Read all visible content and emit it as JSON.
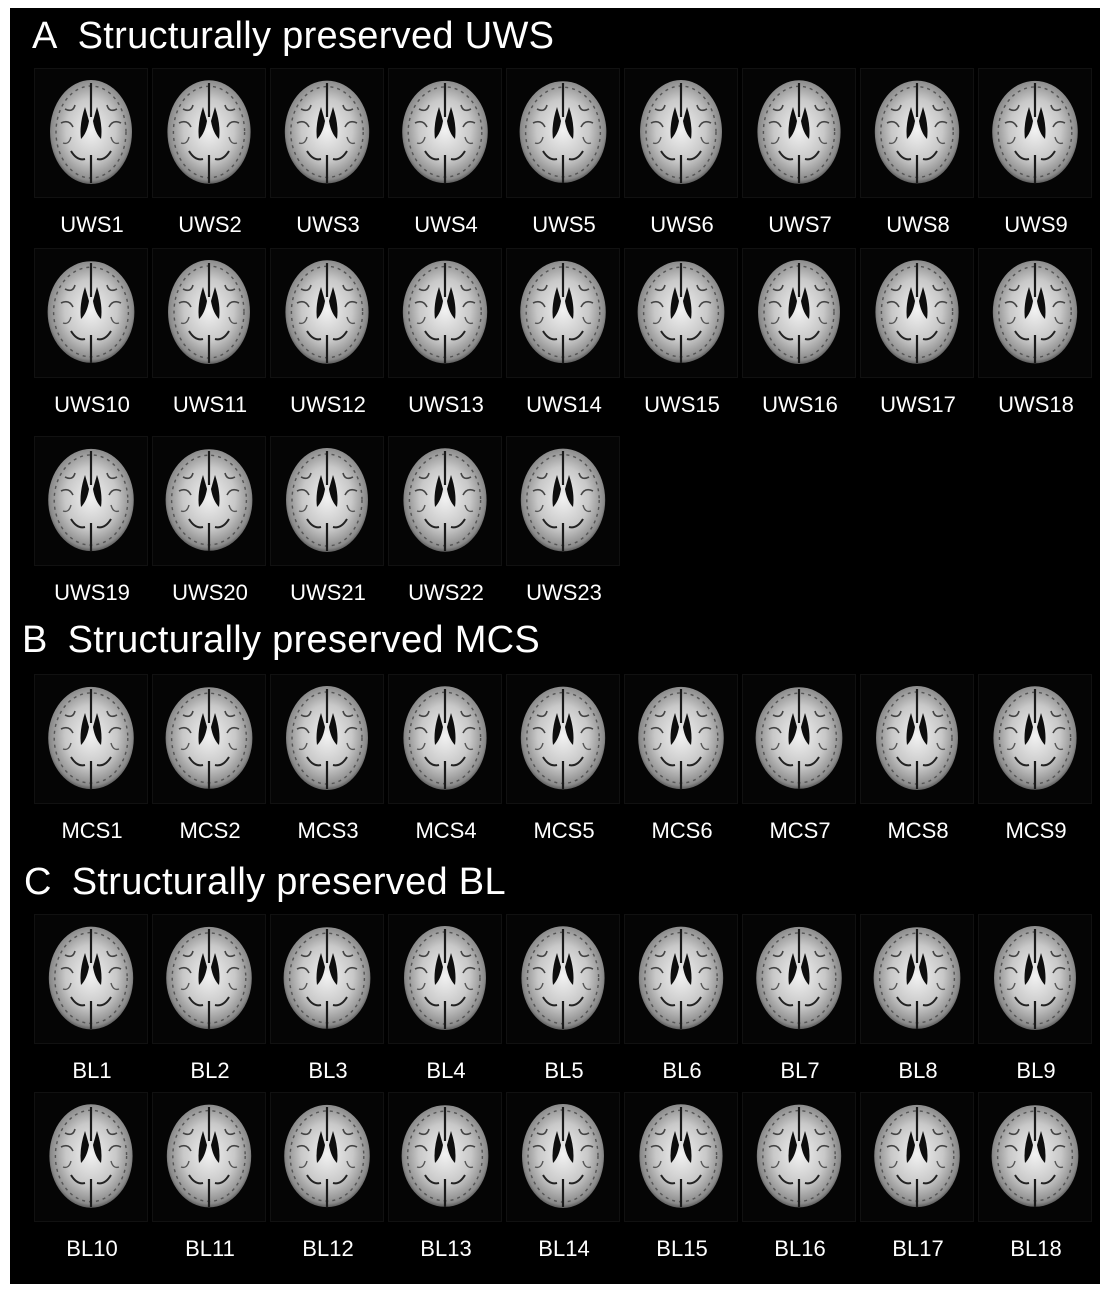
{
  "sections": [
    {
      "letter": "A",
      "title": "Structurally preserved UWS",
      "rows": [
        [
          "UWS1",
          "UWS2",
          "UWS3",
          "UWS4",
          "UWS5",
          "UWS6",
          "UWS7",
          "UWS8",
          "UWS9"
        ],
        [
          "UWS10",
          "UWS11",
          "UWS12",
          "UWS13",
          "UWS14",
          "UWS15",
          "UWS16",
          "UWS17",
          "UWS18"
        ],
        [
          "UWS19",
          "UWS20",
          "UWS21",
          "UWS22",
          "UWS23"
        ]
      ]
    },
    {
      "letter": "B",
      "title": "Structurally preserved MCS",
      "rows": [
        [
          "MCS1",
          "MCS2",
          "MCS3",
          "MCS4",
          "MCS5",
          "MCS6",
          "MCS7",
          "MCS8",
          "MCS9"
        ]
      ]
    },
    {
      "letter": "C",
      "title": "Structurally preserved  BL",
      "rows": [
        [
          "BL1",
          "BL2",
          "BL3",
          "BL4",
          "BL5",
          "BL6",
          "BL7",
          "BL8",
          "BL9"
        ],
        [
          "BL10",
          "BL11",
          "BL12",
          "BL13",
          "BL14",
          "BL15",
          "BL16",
          "BL17",
          "BL18"
        ]
      ]
    }
  ]
}
